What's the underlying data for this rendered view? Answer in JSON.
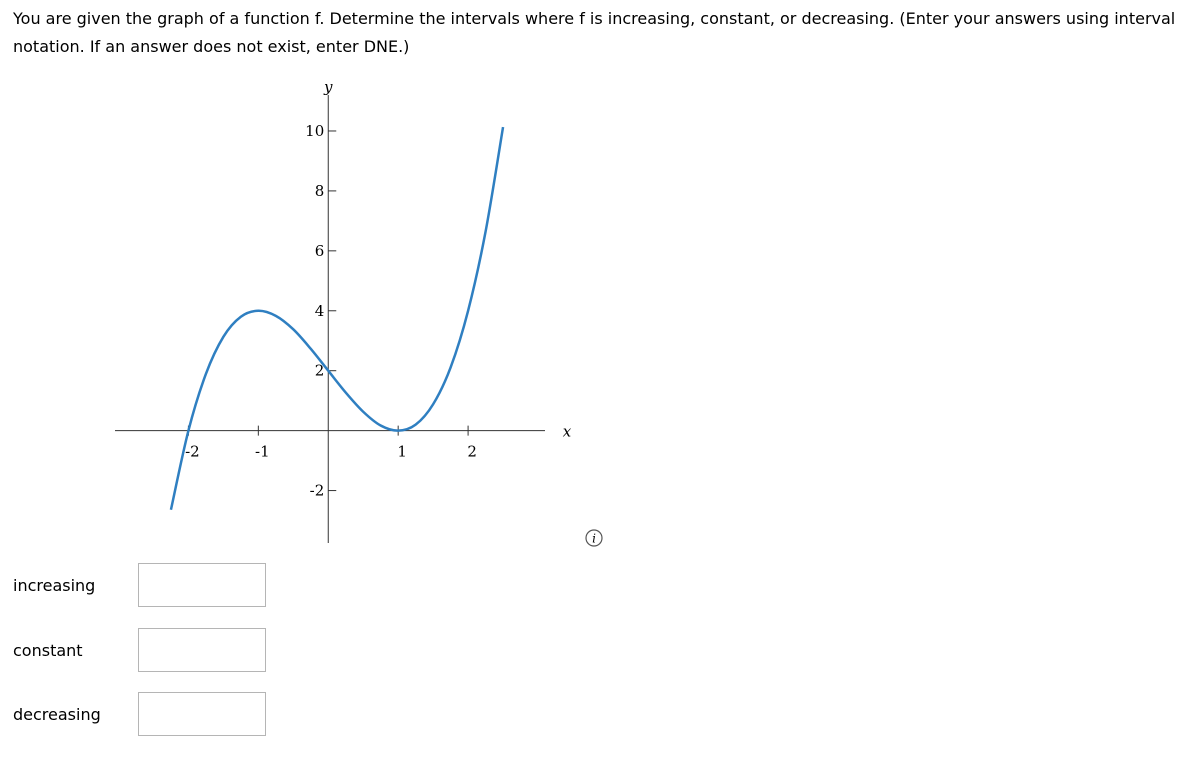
{
  "question": "You are given the graph of a function f. Determine the intervals where f is increasing, constant, or decreasing. (Enter your answers using interval notation. If an answer does not exist, enter DNE.)",
  "graph": {
    "type": "line",
    "x_label": "x",
    "y_label": "y",
    "color": "#2f7fc1",
    "x": [
      -2.25,
      -2,
      -1.75,
      -1.5,
      -1.25,
      -1,
      -0.75,
      -0.5,
      -0.25,
      0,
      0.25,
      0.5,
      0.75,
      1,
      1.25,
      1.5,
      1.75,
      2,
      2.25,
      2.5
    ],
    "values": [
      -2.64,
      0,
      1.89,
      3.13,
      3.8,
      4,
      3.83,
      3.38,
      2.73,
      2,
      1.27,
      0.63,
      0.17,
      0,
      0.2,
      0.88,
      2.11,
      4,
      6.64,
      10.13
    ],
    "xlim": [
      -3.05,
      3.1
    ],
    "ylim": [
      -3.75,
      10.7
    ],
    "xticks": [
      -2,
      -1,
      1,
      2
    ],
    "yticks": [
      -2,
      2,
      4,
      6,
      8,
      10
    ]
  },
  "info_icon": "i",
  "fields": [
    {
      "label": "increasing"
    },
    {
      "label": "constant"
    },
    {
      "label": "decreasing"
    }
  ]
}
